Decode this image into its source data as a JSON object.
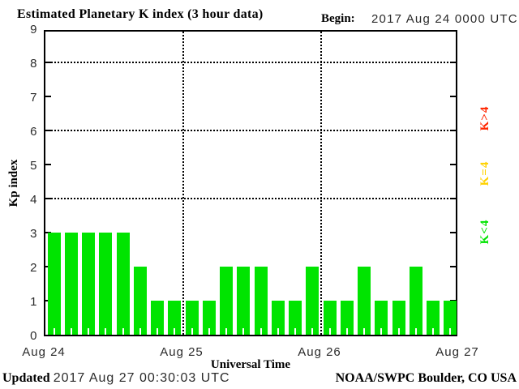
{
  "header": {
    "title": "Estimated Planetary K index (3 hour data)",
    "begin_label": "Begin:",
    "begin_value": "2017 Aug 24 0000 UTC"
  },
  "footer": {
    "updated_label": "Updated",
    "updated_value": "2017 Aug 27 00:30:03 UTC",
    "credit": "NOAA/SWPC Boulder, CO USA"
  },
  "chart_data": {
    "type": "bar",
    "title": "Estimated Planetary K index (3 hour data)",
    "xlabel": "Universal Time",
    "ylabel": "Kp index",
    "ylim": [
      0,
      9
    ],
    "interval_hours": 3,
    "bars_per_day": 8,
    "grid": "dotted horizontal at 4,6,8; dotted vertical at day boundaries",
    "grid_y_dotted": [
      4,
      6,
      8
    ],
    "x_day_labels": [
      "Aug 24",
      "Aug 25",
      "Aug 26",
      "Aug 27"
    ],
    "y_tick_labels": [
      "0",
      "1",
      "2",
      "3",
      "4",
      "5",
      "6",
      "7",
      "8",
      "9"
    ],
    "series": [
      {
        "name": "Kp",
        "values": [
          3,
          3,
          3,
          3,
          3,
          2,
          1,
          1,
          1,
          1,
          2,
          2,
          2,
          1,
          1,
          2,
          1,
          1,
          2,
          1,
          1,
          2,
          1,
          1
        ]
      }
    ],
    "color_rule": {
      "lt4": "#00e400",
      "eq4": "#ffd200",
      "gt4": "#ff2600"
    },
    "legend": [
      {
        "label": "K>4",
        "color": "#ff2600"
      },
      {
        "label": "K=4",
        "color": "#ffd200"
      },
      {
        "label": "K<4",
        "color": "#00e400"
      }
    ],
    "legend_position": "right, rotated 90deg"
  }
}
